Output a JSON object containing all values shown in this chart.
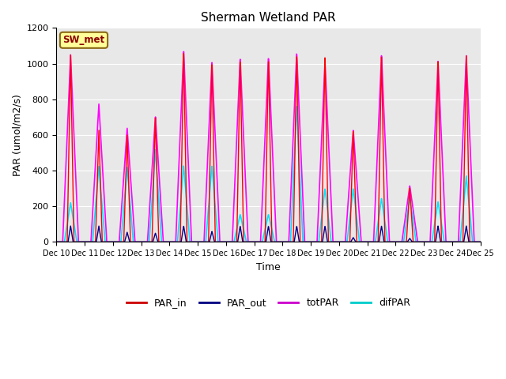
{
  "title": "Sherman Wetland PAR",
  "ylabel": "PAR (umol/m2/s)",
  "xlabel": "Time",
  "annotation": "SW_met",
  "ylim": [
    0,
    1200
  ],
  "series_colors": {
    "PAR_in": "#ff0000",
    "PAR_out": "#00008b",
    "totPAR": "#ff00ff",
    "difPAR": "#00e5ff"
  },
  "background_color": "#e8e8e8",
  "legend_colors": {
    "PAR_in": "#cc0000",
    "PAR_out": "#000080",
    "totPAR": "#cc00cc",
    "difPAR": "#00cccc"
  },
  "day_peaks": {
    "Dec 10": {
      "PAR_in": 1050,
      "totPAR": 1050,
      "difPAR": 220,
      "PAR_out": 90
    },
    "Dec 11": {
      "PAR_in": 630,
      "totPAR": 775,
      "difPAR": 425,
      "PAR_out": 90
    },
    "Dec 12": {
      "PAR_in": 605,
      "totPAR": 640,
      "difPAR": 420,
      "PAR_out": 55
    },
    "Dec 13": {
      "PAR_in": 705,
      "totPAR": 705,
      "difPAR": 520,
      "PAR_out": 50
    },
    "Dec 14": {
      "PAR_in": 1075,
      "totPAR": 1075,
      "difPAR": 430,
      "PAR_out": 90
    },
    "Dec 15": {
      "PAR_in": 1015,
      "totPAR": 1015,
      "difPAR": 430,
      "PAR_out": 60
    },
    "Dec 16": {
      "PAR_in": 1035,
      "totPAR": 1035,
      "difPAR": 155,
      "PAR_out": 90
    },
    "Dec 17": {
      "PAR_in": 1040,
      "totPAR": 1040,
      "difPAR": 155,
      "PAR_out": 90
    },
    "Dec 18": {
      "PAR_in": 1065,
      "totPAR": 1065,
      "difPAR": 770,
      "PAR_out": 90
    },
    "Dec 19": {
      "PAR_in": 1055,
      "totPAR": 1010,
      "difPAR": 300,
      "PAR_out": 90
    },
    "Dec 20": {
      "PAR_in": 630,
      "totPAR": 630,
      "difPAR": 300,
      "PAR_out": 25
    },
    "Dec 21": {
      "PAR_in": 1050,
      "totPAR": 1050,
      "difPAR": 245,
      "PAR_out": 90
    },
    "Dec 22": {
      "PAR_in": 305,
      "totPAR": 315,
      "difPAR": 250,
      "PAR_out": 20
    },
    "Dec 23": {
      "PAR_in": 1015,
      "totPAR": 1015,
      "difPAR": 225,
      "PAR_out": 90
    },
    "Dec 24": {
      "PAR_in": 1045,
      "totPAR": 1045,
      "difPAR": 370,
      "PAR_out": 90
    }
  },
  "widths": {
    "totPAR": 0.28,
    "difPAR": 0.22,
    "PAR_in": 0.12,
    "PAR_out": 0.09
  },
  "solar_noon": 0.5
}
